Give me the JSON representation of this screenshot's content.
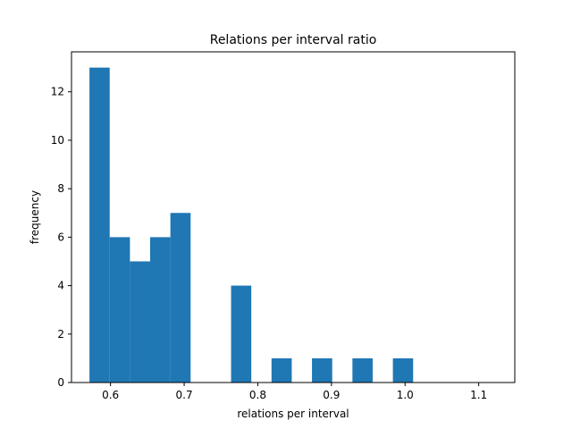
{
  "chart_data": {
    "type": "bar",
    "title": "Relations per interval ratio",
    "xlabel": "relations per interval",
    "ylabel": "frequency",
    "xlim": [
      0.547,
      1.149
    ],
    "ylim": [
      0,
      13.65
    ],
    "xticks": [
      0.6,
      0.7,
      0.8,
      0.9,
      1.0,
      1.1
    ],
    "xtick_labels": [
      "0.6",
      "0.7",
      "0.8",
      "0.9",
      "1.0",
      "1.1"
    ],
    "yticks": [
      0,
      2,
      4,
      6,
      8,
      10,
      12
    ],
    "ytick_labels": [
      "0",
      "2",
      "4",
      "6",
      "8",
      "10",
      "12"
    ],
    "bin_start": 0.5714,
    "bin_width": 0.02747,
    "values": [
      13,
      6,
      5,
      6,
      7,
      0,
      0,
      4,
      0,
      1,
      0,
      1,
      0,
      1,
      0,
      1,
      0,
      0,
      0,
      0
    ],
    "bar_color": "#1f77b4",
    "grid": false,
    "legend": "none"
  }
}
